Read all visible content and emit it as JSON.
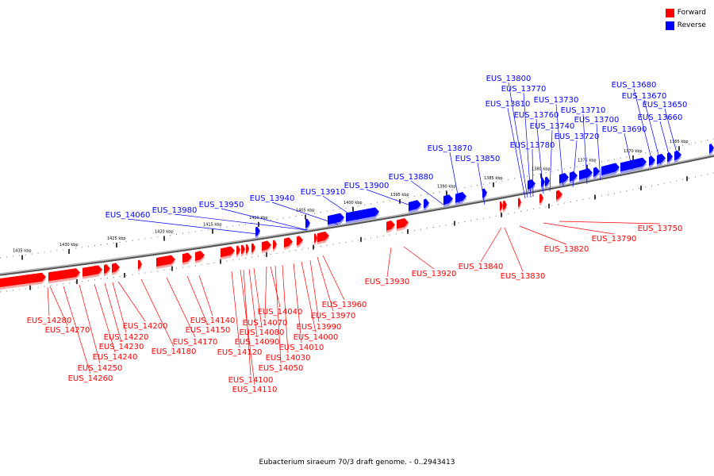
{
  "caption": "Eubacterium siraeum 70/3 draft genome. - 0..2943413",
  "legend": [
    {
      "label": "Forward",
      "color": "#ff0000"
    },
    {
      "label": "Reverse",
      "color": "#0000ff"
    }
  ],
  "colors": {
    "forward": "#ff0000",
    "forward_shade": "#f4a6a6",
    "reverse": "#0000ff",
    "reverse_shade": "#9a9af2",
    "backbone": "#808080"
  },
  "scale_labels": [
    "1435 kbp",
    "1430 kbp",
    "1425 kbp",
    "1420 kbp",
    "1415 kbp",
    "1410 kbp",
    "1405 kbp",
    "1400 kbp",
    "1395 kbp",
    "1390 kbp",
    "1385 kbp",
    "1380 kbp",
    "1375 kbp",
    "1370 kbp",
    "1365 kbp"
  ],
  "reverse_labels": [
    "EUS_13800",
    "EUS_13770",
    "EUS_13810",
    "EUS_13730",
    "EUS_13760",
    "EUS_13710",
    "EUS_13740",
    "EUS_13700",
    "EUS_13780",
    "EUS_13720",
    "EUS_13690",
    "EUS_13680",
    "EUS_13670",
    "EUS_13650",
    "EUS_13660",
    "EUS_13870",
    "EUS_13850",
    "EUS_13880",
    "EUS_13900",
    "EUS_13910",
    "EUS_13940",
    "EUS_13950",
    "EUS_13980",
    "EUS_14060"
  ],
  "forward_labels": [
    "EUS_13750",
    "EUS_13790",
    "EUS_13820",
    "EUS_13840",
    "EUS_13830",
    "EUS_13920",
    "EUS_13930",
    "EUS_13960",
    "EUS_13970",
    "EUS_13990",
    "EUS_14000",
    "EUS_14010",
    "EUS_14030",
    "EUS_14040",
    "EUS_14050",
    "EUS_14070",
    "EUS_14080",
    "EUS_14090",
    "EUS_14100",
    "EUS_14110",
    "EUS_14120",
    "EUS_14140",
    "EUS_14150",
    "EUS_14170",
    "EUS_14180",
    "EUS_14200",
    "EUS_14220",
    "EUS_14230",
    "EUS_14240",
    "EUS_14250",
    "EUS_14260",
    "EUS_14270",
    "EUS_14280"
  ]
}
